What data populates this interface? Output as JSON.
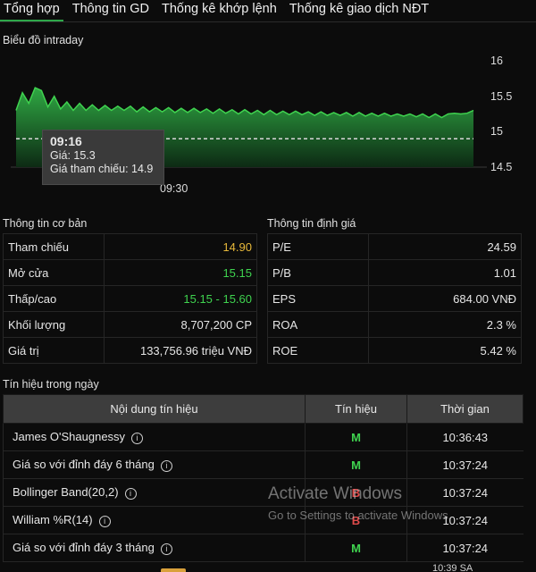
{
  "tabs": [
    {
      "label": "Tổng hợp",
      "active": true
    },
    {
      "label": "Thông tin GD",
      "active": false
    },
    {
      "label": "Thống kê khớp lệnh",
      "active": false
    },
    {
      "label": "Thống kê giao dịch NĐT",
      "active": false
    }
  ],
  "chart_title": "Biểu đồ intraday",
  "chart_data": {
    "type": "area",
    "title": "",
    "y_ticks": [
      "16",
      "15.5",
      "15",
      "14.5"
    ],
    "ylim": [
      14.5,
      16
    ],
    "x_ticks": [
      "09:30"
    ],
    "reference_price": 14.9,
    "series": [
      {
        "values": [
          15.3,
          15.55,
          15.4,
          15.62,
          15.58,
          15.35,
          15.5,
          15.32,
          15.42,
          15.3,
          15.4,
          15.3,
          15.38,
          15.3,
          15.37,
          15.3,
          15.36,
          15.3,
          15.36,
          15.28,
          15.35,
          15.28,
          15.34,
          15.28,
          15.34,
          15.27,
          15.33,
          15.27,
          15.33,
          15.27,
          15.32,
          15.26,
          15.32,
          15.26,
          15.31,
          15.25,
          15.31,
          15.25,
          15.3,
          15.24,
          15.3,
          15.24,
          15.29,
          15.24,
          15.29,
          15.24,
          15.28,
          15.23,
          15.28,
          15.23,
          15.27,
          15.23,
          15.27,
          15.22,
          15.27,
          15.22,
          15.26,
          15.22,
          15.26,
          15.22,
          15.25,
          15.22,
          15.25,
          15.21,
          15.25,
          15.2,
          15.25,
          15.2,
          15.25,
          15.26,
          15.25,
          15.26,
          15.3
        ]
      }
    ],
    "colors": {
      "line": "#3fd34f",
      "fill_top": "#2fa843",
      "fill_bottom": "#0d2a14",
      "reference": "#d8d8d8"
    }
  },
  "tooltip": {
    "time": "09:16",
    "price": "Giá: 15.3",
    "reference": "Giá tham chiếu: 14.9"
  },
  "basic_info": {
    "title": "Thông tin cơ bản",
    "rows": [
      {
        "label": "Tham chiếu",
        "value": "14.90",
        "color": "yellow"
      },
      {
        "label": "Mở cửa",
        "value": "15.15",
        "color": "green"
      },
      {
        "label": "Thấp/cao",
        "value": "15.15 - 15.60",
        "color": "green"
      },
      {
        "label": "Khối lượng",
        "value": "8,707,200 CP",
        "color": ""
      },
      {
        "label": "Giá trị",
        "value": "133,756.96 triệu VNĐ",
        "color": ""
      }
    ]
  },
  "valuation": {
    "title": "Thông tin định giá",
    "rows": [
      {
        "label": "P/E",
        "value": "24.59"
      },
      {
        "label": "P/B",
        "value": "1.01"
      },
      {
        "label": "EPS",
        "value": "684.00 VNĐ"
      },
      {
        "label": "ROA",
        "value": "2.3 %"
      },
      {
        "label": "ROE",
        "value": "5.42 %"
      }
    ]
  },
  "signals": {
    "title": "Tín hiệu trong ngày",
    "headers": [
      "Nội dung tín hiệu",
      "Tín hiệu",
      "Thời gian"
    ],
    "rows": [
      {
        "name": "James O'Shaugnessy",
        "signal": "M",
        "signal_color": "green",
        "time": "10:36:43"
      },
      {
        "name": "Giá so với đỉnh đáy 6 tháng",
        "signal": "M",
        "signal_color": "green",
        "time": "10:37:24"
      },
      {
        "name": "Bollinger Band(20,2)",
        "signal": "B",
        "signal_color": "red",
        "time": "10:37:24"
      },
      {
        "name": "William %R(14)",
        "signal": "B",
        "signal_color": "red",
        "time": "10:37:24"
      },
      {
        "name": "Giá so với đỉnh đáy 3 tháng",
        "signal": "M",
        "signal_color": "green",
        "time": "10:37:24"
      }
    ]
  },
  "watermark": {
    "line1": "Activate Windows",
    "line2": "Go to Settings to activate Windows."
  },
  "taskbar": {
    "clock": "10:39 SA"
  }
}
